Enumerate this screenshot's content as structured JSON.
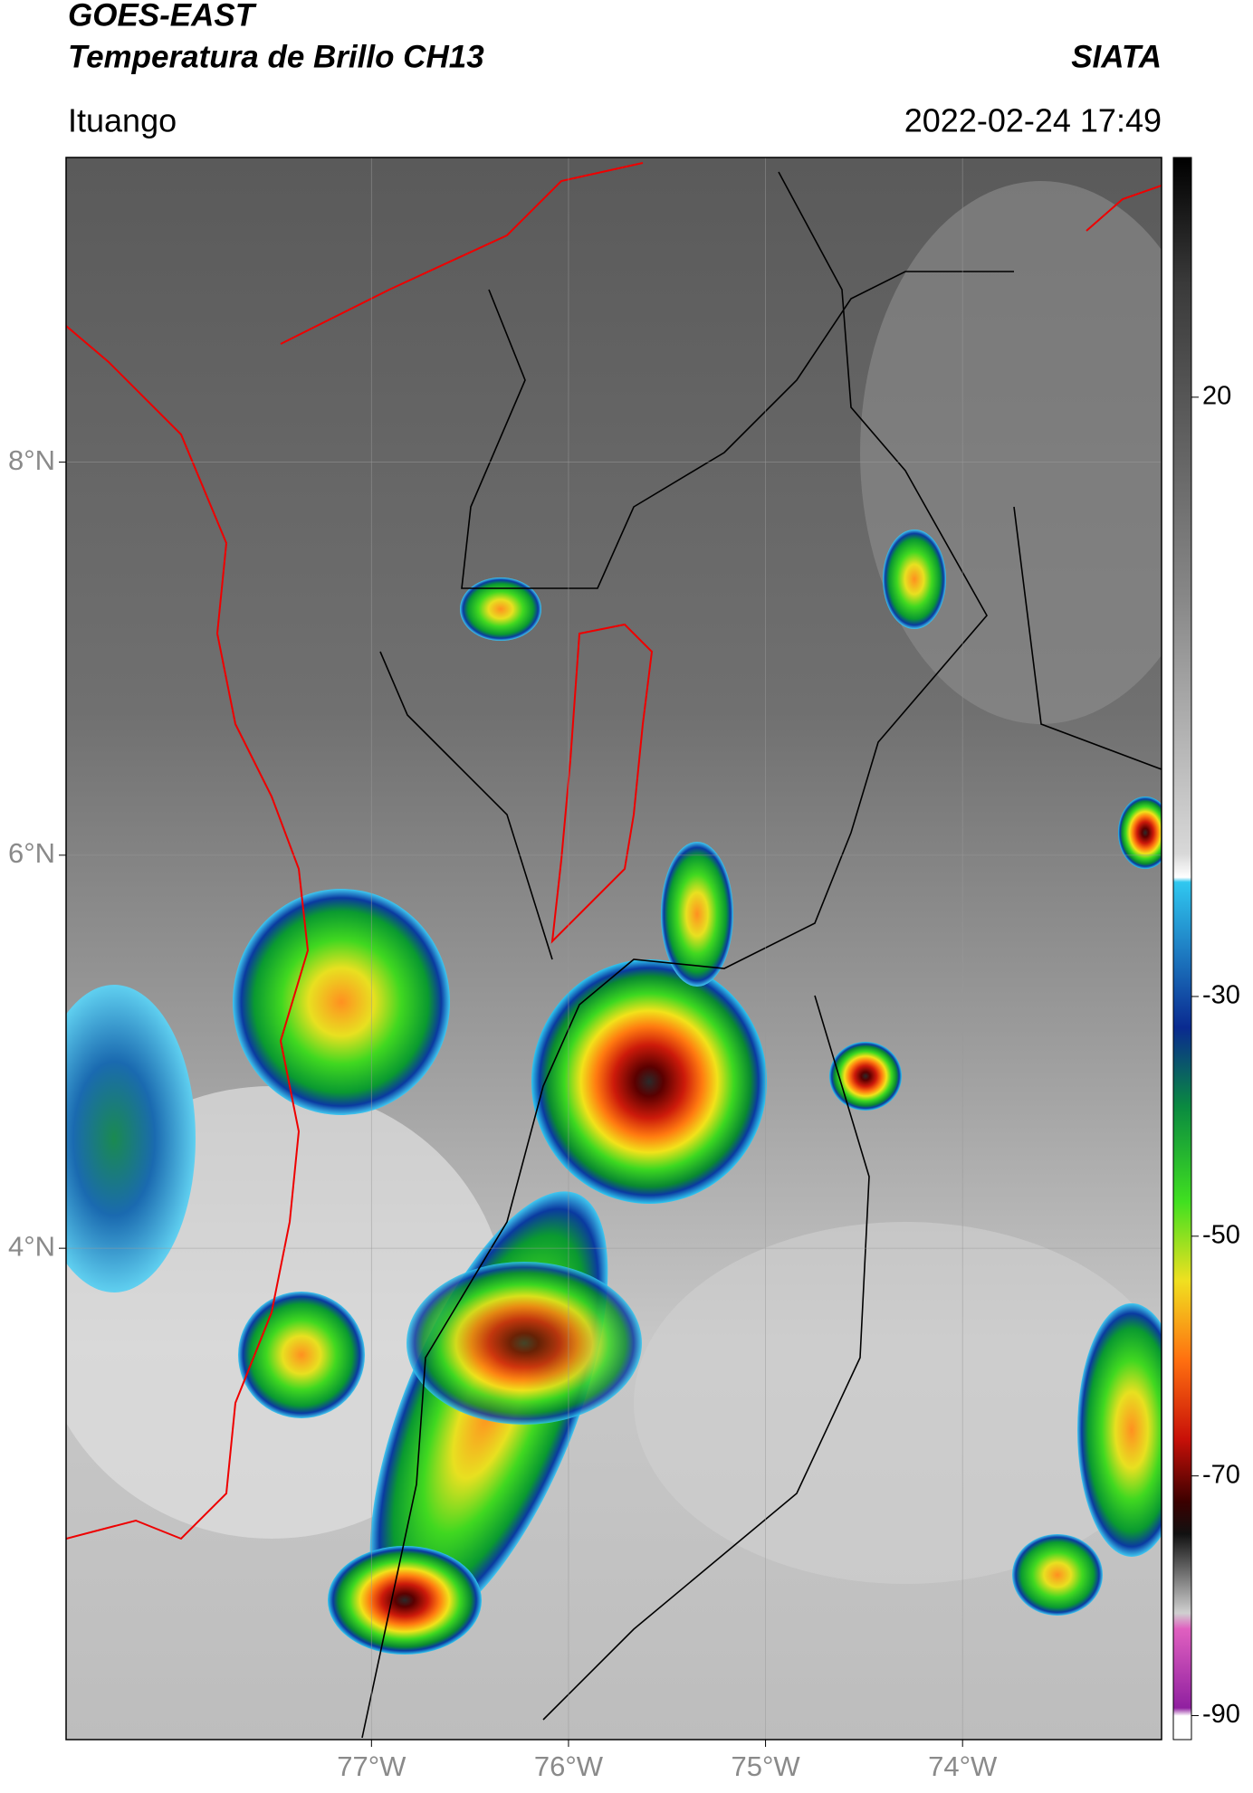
{
  "header": {
    "title": "GOES-EAST",
    "subtitle": "Temperatura de Brillo CH13",
    "brand": "SIATA",
    "location": "Ituango",
    "datetime": "2022-02-24 17:49"
  },
  "map": {
    "xlim": [
      -78.55,
      -72.99
    ],
    "ylim": [
      1.5,
      9.55
    ],
    "xticks": [
      {
        "value": -77,
        "label": "77°W"
      },
      {
        "value": -76,
        "label": "76°W"
      },
      {
        "value": -75,
        "label": "75°W"
      },
      {
        "value": -74,
        "label": "74°W"
      }
    ],
    "yticks": [
      {
        "value": 8,
        "label": "8°N"
      },
      {
        "value": 6,
        "label": "6°N"
      },
      {
        "value": 4,
        "label": "4°N"
      }
    ],
    "grid": true
  },
  "colorbar": {
    "lim": [
      -92,
      40
    ],
    "ticks": [
      20,
      -30,
      -50,
      -70,
      -90
    ]
  }
}
